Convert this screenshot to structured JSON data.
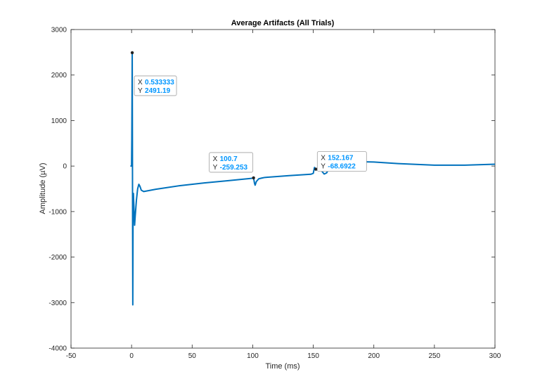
{
  "chart_data": {
    "type": "line",
    "title": "Average Artifacts (All Trials)",
    "xlabel": "Time (ms)",
    "ylabel": "Amplitude (µV)",
    "xlim": [
      -50,
      300
    ],
    "ylim": [
      -4000,
      3000
    ],
    "xticks": [
      -50,
      0,
      50,
      100,
      150,
      200,
      250,
      300
    ],
    "yticks": [
      -4000,
      -3000,
      -2000,
      -1000,
      0,
      1000,
      2000,
      3000
    ],
    "x_tick_labels": [
      "-50",
      "0",
      "50",
      "100",
      "150",
      "200",
      "250",
      "300"
    ],
    "y_tick_labels": [
      "-4000",
      "-3000",
      "-2000",
      "-1000",
      "0",
      "1000",
      "2000",
      "3000"
    ],
    "grid": false,
    "line_color": "#0072BD",
    "series": [
      {
        "x": [
          -1,
          0,
          0.2,
          0.4,
          0.533333,
          0.7,
          0.85,
          1.0,
          1.2,
          1.5,
          2,
          2.5,
          3,
          4,
          5,
          6,
          7,
          8,
          10,
          20,
          40,
          60,
          80,
          99,
          100.7,
          101.5,
          102,
          103,
          105,
          108,
          110,
          130,
          148,
          150,
          151,
          152.167,
          153,
          155,
          157,
          159,
          161,
          163,
          165,
          170,
          180,
          200,
          220,
          250,
          275,
          300
        ],
        "y": [
          0,
          0,
          600,
          1600,
          2491.19,
          600,
          -1500,
          -3050,
          -1200,
          -600,
          -950,
          -1300,
          -1100,
          -750,
          -500,
          -400,
          -450,
          -530,
          -560,
          -510,
          -430,
          -370,
          -320,
          -270,
          -259.253,
          -380,
          -420,
          -340,
          -280,
          -260,
          -250,
          -210,
          -180,
          -160,
          -30,
          -68.6922,
          -80,
          -70,
          -110,
          -175,
          -150,
          -60,
          60,
          110,
          100,
          90,
          55,
          20,
          20,
          40
        ]
      }
    ],
    "datatips": [
      {
        "x_key": "X",
        "x_value": "0.533333",
        "y_key": "Y",
        "y_value": "2491.19",
        "x": 0.533333,
        "y": 2491.19
      },
      {
        "x_key": "X",
        "x_value": "100.7",
        "y_key": "Y",
        "y_value": "-259.253",
        "x": 100.7,
        "y": -259.253
      },
      {
        "x_key": "X",
        "x_value": "152.167",
        "y_key": "Y",
        "y_value": "-68.6922",
        "x": 152.167,
        "y": -68.6922
      }
    ],
    "datatip_value_color": "#0096FF"
  }
}
